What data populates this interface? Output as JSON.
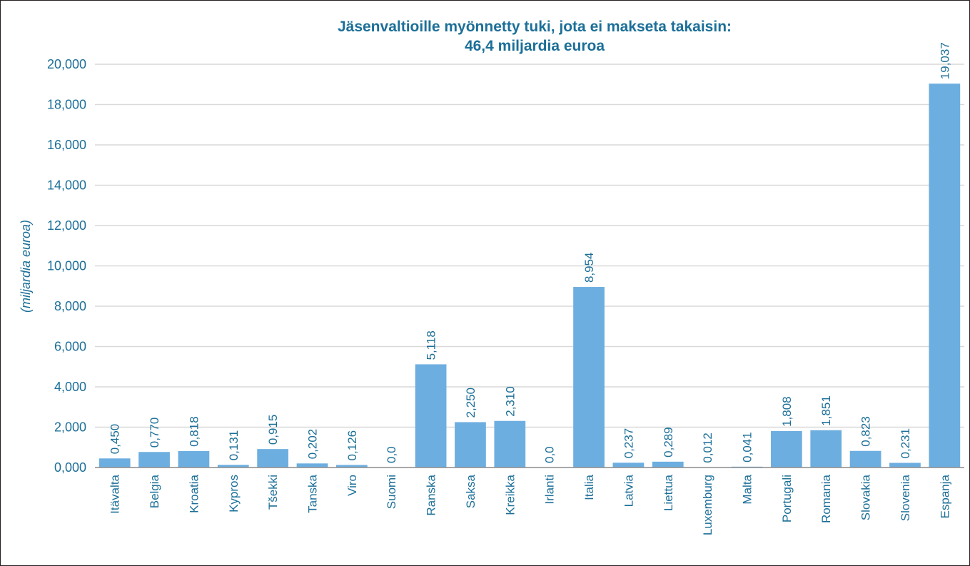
{
  "chart_data": {
    "type": "bar",
    "title": [
      "Jäsenvaltioille myönnetty tuki, jota ei makseta takaisin:",
      "46,4 miljardia euroa"
    ],
    "xlabel": "",
    "ylabel": "(miljardia euroa)",
    "ylim": [
      0,
      20000
    ],
    "yticks": [
      0,
      2000,
      4000,
      6000,
      8000,
      10000,
      12000,
      14000,
      16000,
      18000,
      20000
    ],
    "ytick_labels": [
      "0,000",
      "2,000",
      "4,000",
      "6,000",
      "8,000",
      "10,000",
      "12,000",
      "14,000",
      "16,000",
      "18,000",
      "20,000"
    ],
    "grid": true,
    "bar_color": "#6daee0",
    "text_color": "#1c6f98",
    "categories": [
      "Itävalta",
      "Belgia",
      "Kroatia",
      "Kypros",
      "Tšekki",
      "Tanska",
      "Viro",
      "Suomi",
      "Ranska",
      "Saksa",
      "Kreikka",
      "Irlanti",
      "Italia",
      "Latvia",
      "Liettua",
      "Luxemburg",
      "Malta",
      "Portugali",
      "Romania",
      "Slovakia",
      "Slovenia",
      "Espanja"
    ],
    "values": [
      450,
      770,
      818,
      131,
      915,
      202,
      126,
      0,
      5118,
      2250,
      2310,
      0,
      8954,
      237,
      289,
      12,
      41,
      1808,
      1851,
      823,
      231,
      19037
    ],
    "data_labels": [
      "0,450",
      "0,770",
      "0,818",
      "0,131",
      "0,915",
      "0,202",
      "0,126",
      "0,0",
      "5,118",
      "2,250",
      "2,310",
      "0,0",
      "8,954",
      "0,237",
      "0,289",
      "0,012",
      "0,041",
      "1,808",
      "1,851",
      "0,823",
      "0,231",
      "19,037"
    ]
  }
}
